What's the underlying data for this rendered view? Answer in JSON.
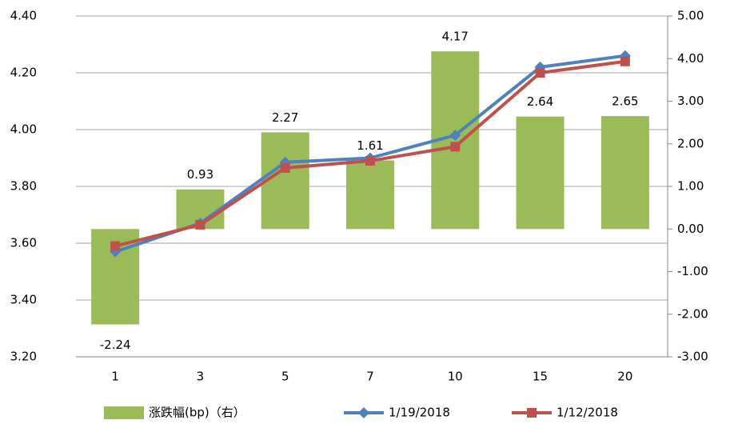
{
  "chart_data": {
    "type": "combo",
    "categories": [
      "1",
      "3",
      "5",
      "7",
      "10",
      "15",
      "20"
    ],
    "series": [
      {
        "name": "涨跌幅(bp)（右）",
        "type": "bar",
        "axis": "y2",
        "color": "#9bbb59",
        "values": [
          -2.24,
          0.93,
          2.27,
          1.61,
          4.17,
          2.64,
          2.65
        ]
      },
      {
        "name": "1/19/2018",
        "type": "line",
        "marker": "diamond",
        "color": "#4f81bd",
        "values": [
          3.57,
          3.67,
          3.885,
          3.9,
          3.98,
          4.22,
          4.26
        ]
      },
      {
        "name": "1/12/2018",
        "type": "line",
        "marker": "square",
        "color": "#c0504d",
        "values": [
          3.59,
          3.665,
          3.865,
          3.89,
          3.94,
          4.2,
          4.24
        ]
      }
    ],
    "ylim": [
      3.2,
      4.4
    ],
    "yticks": [
      {
        "value": 3.2,
        "label": "3.20"
      },
      {
        "value": 3.4,
        "label": "3.40"
      },
      {
        "value": 3.6,
        "label": "3.60"
      },
      {
        "value": 3.8,
        "label": "3.80"
      },
      {
        "value": 4.0,
        "label": "4.00"
      },
      {
        "value": 4.2,
        "label": "4.20"
      },
      {
        "value": 4.4,
        "label": "4.40"
      }
    ],
    "y2lim": [
      -3,
      5
    ],
    "y2ticks": [
      {
        "value": -3,
        "label": "-3.00"
      },
      {
        "value": -2,
        "label": "-2.00"
      },
      {
        "value": -1,
        "label": "-1.00"
      },
      {
        "value": 0,
        "label": "0.00"
      },
      {
        "value": 1,
        "label": "1.00"
      },
      {
        "value": 2,
        "label": "2.00"
      },
      {
        "value": 3,
        "label": "3.00"
      },
      {
        "value": 4,
        "label": "4.00"
      },
      {
        "value": 5,
        "label": "5.00"
      }
    ],
    "grid": true,
    "legend": "bottom"
  }
}
